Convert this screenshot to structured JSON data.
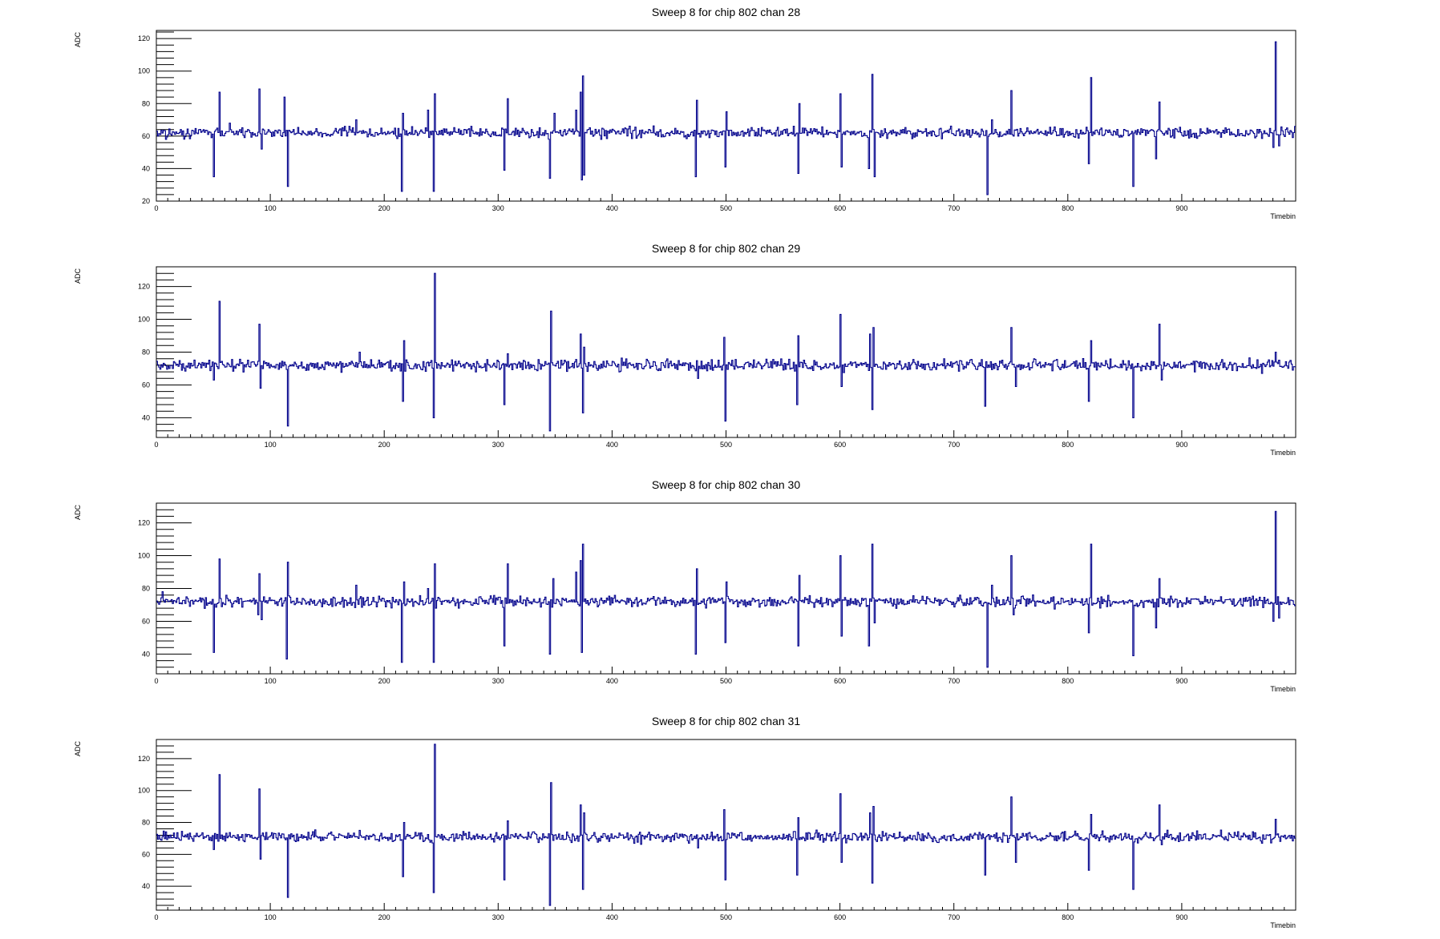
{
  "chart_data": [
    {
      "type": "line",
      "title": "Sweep 8 for chip 802 chan 28",
      "xlabel": "Timebin",
      "ylabel": "ADC",
      "xlim": [
        0,
        1000
      ],
      "ylim": [
        20,
        125
      ],
      "x_ticks": [
        "0",
        "100",
        "200",
        "300",
        "400",
        "500",
        "600",
        "700",
        "800",
        "900"
      ],
      "y_ticks": [
        20,
        40,
        60,
        80,
        100,
        120
      ],
      "baseline": 62,
      "noise": 1.6,
      "spikes": [
        [
          8,
          58
        ],
        [
          50,
          35
        ],
        [
          55,
          87
        ],
        [
          64,
          68
        ],
        [
          90,
          89
        ],
        [
          92,
          52
        ],
        [
          112,
          84
        ],
        [
          115,
          29
        ],
        [
          175,
          70
        ],
        [
          215,
          26
        ],
        [
          216,
          74
        ],
        [
          238,
          76
        ],
        [
          243,
          26
        ],
        [
          244,
          86
        ],
        [
          305,
          39
        ],
        [
          308,
          83
        ],
        [
          345,
          34
        ],
        [
          349,
          74
        ],
        [
          368,
          76
        ],
        [
          372,
          87
        ],
        [
          373,
          33
        ],
        [
          374,
          97
        ],
        [
          375,
          36
        ],
        [
          473,
          35
        ],
        [
          474,
          82
        ],
        [
          499,
          41
        ],
        [
          500,
          75
        ],
        [
          563,
          37
        ],
        [
          564,
          80
        ],
        [
          600,
          86
        ],
        [
          601,
          41
        ],
        [
          625,
          40
        ],
        [
          628,
          98
        ],
        [
          630,
          35
        ],
        [
          729,
          24
        ],
        [
          733,
          70
        ],
        [
          750,
          88
        ],
        [
          752,
          60
        ],
        [
          818,
          43
        ],
        [
          820,
          96
        ],
        [
          857,
          29
        ],
        [
          877,
          46
        ],
        [
          880,
          81
        ],
        [
          980,
          53
        ],
        [
          982,
          118
        ],
        [
          985,
          54
        ]
      ],
      "series": [
        {
          "name": "",
          "seed": 28
        }
      ]
    },
    {
      "type": "line",
      "title": "Sweep 8 for chip 802 chan 29",
      "xlabel": "Timebin",
      "ylabel": "ADC",
      "xlim": [
        0,
        1000
      ],
      "ylim": [
        28,
        132
      ],
      "x_ticks": [
        "0",
        "100",
        "200",
        "300",
        "400",
        "500",
        "600",
        "700",
        "800",
        "900"
      ],
      "y_ticks": [
        40,
        60,
        80,
        100,
        120
      ],
      "baseline": 72,
      "noise": 1.7,
      "spikes": [
        [
          50,
          63
        ],
        [
          55,
          111
        ],
        [
          90,
          97
        ],
        [
          91,
          58
        ],
        [
          115,
          35
        ],
        [
          178,
          80
        ],
        [
          216,
          50
        ],
        [
          217,
          87
        ],
        [
          243,
          40
        ],
        [
          244,
          128
        ],
        [
          305,
          48
        ],
        [
          308,
          79
        ],
        [
          345,
          32
        ],
        [
          346,
          105
        ],
        [
          372,
          91
        ],
        [
          374,
          43
        ],
        [
          375,
          83
        ],
        [
          475,
          64
        ],
        [
          498,
          89
        ],
        [
          499,
          38
        ],
        [
          562,
          48
        ],
        [
          563,
          90
        ],
        [
          600,
          103
        ],
        [
          601,
          59
        ],
        [
          626,
          91
        ],
        [
          628,
          45
        ],
        [
          629,
          95
        ],
        [
          727,
          47
        ],
        [
          750,
          95
        ],
        [
          754,
          59
        ],
        [
          818,
          50
        ],
        [
          820,
          87
        ],
        [
          857,
          40
        ],
        [
          880,
          97
        ],
        [
          882,
          63
        ],
        [
          970,
          67
        ],
        [
          982,
          80
        ]
      ],
      "series": [
        {
          "name": "",
          "seed": 29
        }
      ]
    },
    {
      "type": "line",
      "title": "Sweep 8 for chip 802 chan 30",
      "xlabel": "Timebin",
      "ylabel": "ADC",
      "xlim": [
        0,
        1000
      ],
      "ylim": [
        28,
        132
      ],
      "x_ticks": [
        "0",
        "100",
        "200",
        "300",
        "400",
        "500",
        "600",
        "700",
        "800",
        "900"
      ],
      "y_ticks": [
        40,
        60,
        80,
        100,
        120
      ],
      "baseline": 72,
      "noise": 1.6,
      "spikes": [
        [
          5,
          78
        ],
        [
          50,
          41
        ],
        [
          55,
          98
        ],
        [
          89,
          64
        ],
        [
          90,
          89
        ],
        [
          92,
          61
        ],
        [
          114,
          37
        ],
        [
          115,
          96
        ],
        [
          175,
          82
        ],
        [
          215,
          35
        ],
        [
          217,
          84
        ],
        [
          238,
          80
        ],
        [
          243,
          35
        ],
        [
          244,
          95
        ],
        [
          305,
          45
        ],
        [
          308,
          95
        ],
        [
          345,
          40
        ],
        [
          348,
          86
        ],
        [
          368,
          90
        ],
        [
          372,
          97
        ],
        [
          373,
          41
        ],
        [
          374,
          107
        ],
        [
          473,
          40
        ],
        [
          474,
          92
        ],
        [
          499,
          47
        ],
        [
          500,
          84
        ],
        [
          563,
          45
        ],
        [
          564,
          88
        ],
        [
          600,
          100
        ],
        [
          601,
          51
        ],
        [
          625,
          45
        ],
        [
          628,
          107
        ],
        [
          630,
          59
        ],
        [
          729,
          32
        ],
        [
          733,
          82
        ],
        [
          750,
          100
        ],
        [
          752,
          64
        ],
        [
          818,
          53
        ],
        [
          820,
          107
        ],
        [
          857,
          39
        ],
        [
          877,
          56
        ],
        [
          880,
          86
        ],
        [
          980,
          60
        ],
        [
          982,
          127
        ],
        [
          985,
          62
        ]
      ],
      "series": [
        {
          "name": "",
          "seed": 30
        }
      ]
    },
    {
      "type": "line",
      "title": "Sweep 8 for chip 802 chan 31",
      "xlabel": "Timebin",
      "ylabel": "ADC",
      "xlim": [
        0,
        1000
      ],
      "ylim": [
        25,
        132
      ],
      "x_ticks": [
        "0",
        "100",
        "200",
        "300",
        "400",
        "500",
        "600",
        "700",
        "800",
        "900"
      ],
      "y_ticks": [
        40,
        60,
        80,
        100,
        120
      ],
      "baseline": 71,
      "noise": 1.6,
      "spikes": [
        [
          50,
          63
        ],
        [
          55,
          110
        ],
        [
          90,
          101
        ],
        [
          91,
          57
        ],
        [
          115,
          33
        ],
        [
          178,
          75
        ],
        [
          216,
          46
        ],
        [
          217,
          80
        ],
        [
          243,
          36
        ],
        [
          244,
          129
        ],
        [
          305,
          44
        ],
        [
          308,
          81
        ],
        [
          345,
          28
        ],
        [
          346,
          105
        ],
        [
          372,
          91
        ],
        [
          374,
          38
        ],
        [
          375,
          86
        ],
        [
          475,
          64
        ],
        [
          498,
          88
        ],
        [
          499,
          44
        ],
        [
          562,
          47
        ],
        [
          563,
          83
        ],
        [
          600,
          98
        ],
        [
          601,
          55
        ],
        [
          626,
          86
        ],
        [
          628,
          42
        ],
        [
          629,
          90
        ],
        [
          727,
          47
        ],
        [
          750,
          96
        ],
        [
          754,
          55
        ],
        [
          818,
          50
        ],
        [
          820,
          85
        ],
        [
          857,
          38
        ],
        [
          880,
          91
        ],
        [
          882,
          66
        ],
        [
          970,
          67
        ],
        [
          982,
          82
        ]
      ],
      "series": [
        {
          "name": "",
          "seed": 31
        }
      ]
    }
  ]
}
